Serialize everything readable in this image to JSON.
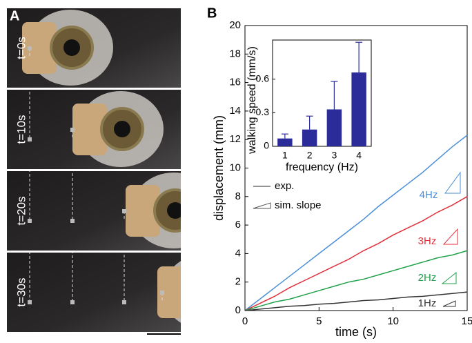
{
  "panel_a": {
    "label": "A",
    "frames": [
      "t=0s",
      "t=10s",
      "t=20s",
      "t=30s"
    ]
  },
  "chart_data": [
    {
      "type": "line",
      "label": "B",
      "xlabel": "time (s)",
      "ylabel": "displacement (mm)",
      "x": [
        0,
        1,
        2,
        3,
        4,
        5,
        6,
        7,
        8,
        9,
        10,
        11,
        12,
        13,
        14,
        15
      ],
      "xlim": [
        0,
        15
      ],
      "xticks": [
        0,
        5,
        10,
        15
      ],
      "ylim": [
        0,
        20
      ],
      "yticks": [
        0,
        2,
        4,
        6,
        8,
        10,
        12,
        14,
        16,
        18,
        20
      ],
      "series": [
        {
          "name": "4Hz",
          "color": "#4a8fd6",
          "values": [
            0,
            0.8,
            1.6,
            2.4,
            3.2,
            4.0,
            4.8,
            5.6,
            6.4,
            7.3,
            8.1,
            8.9,
            9.7,
            10.6,
            11.5,
            12.3
          ]
        },
        {
          "name": "3Hz",
          "color": "#e0303a",
          "values": [
            0,
            0.5,
            1.0,
            1.6,
            2.1,
            2.6,
            3.1,
            3.6,
            4.2,
            4.7,
            5.3,
            5.8,
            6.3,
            6.9,
            7.4,
            8.0
          ]
        },
        {
          "name": "2Hz",
          "color": "#1fa04a",
          "values": [
            0,
            0.3,
            0.6,
            0.8,
            1.1,
            1.4,
            1.7,
            2.0,
            2.2,
            2.5,
            2.8,
            3.1,
            3.4,
            3.7,
            3.9,
            4.2
          ]
        },
        {
          "name": "1Hz",
          "color": "#333333",
          "values": [
            0,
            0.1,
            0.2,
            0.3,
            0.35,
            0.45,
            0.5,
            0.6,
            0.7,
            0.75,
            0.85,
            0.95,
            1.0,
            1.1,
            1.2,
            1.3
          ]
        }
      ],
      "legend": [
        "exp.",
        "sim. slope"
      ]
    },
    {
      "type": "bar",
      "xlabel": "frequency (Hz)",
      "ylabel": "walking speed (mm/s)",
      "categories": [
        "1",
        "2",
        "3",
        "4"
      ],
      "values": [
        0.07,
        0.15,
        0.33,
        0.66
      ],
      "errors": [
        0.04,
        0.12,
        0.25,
        0.27
      ],
      "color": "#2b2b9a",
      "ylim": [
        0,
        0.95
      ],
      "yticks": [
        0,
        0.3,
        0.6
      ]
    }
  ]
}
